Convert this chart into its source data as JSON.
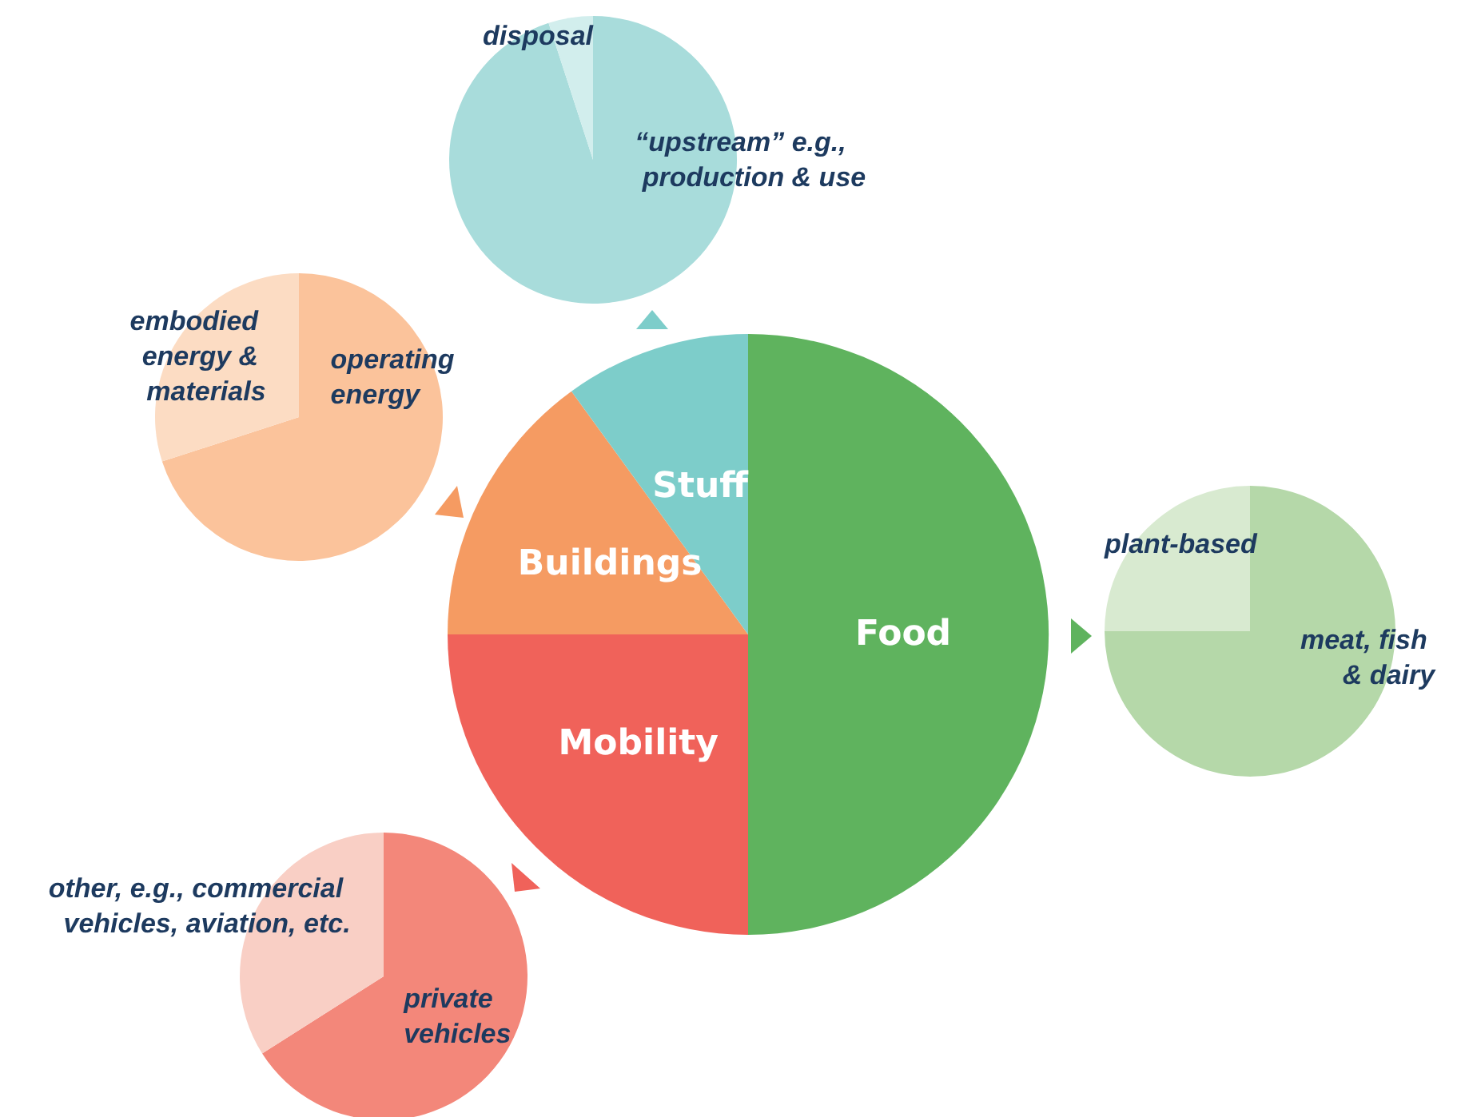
{
  "chart_data": [
    {
      "type": "pie",
      "categories": [
        "Food",
        "Mobility",
        "Buildings",
        "Stuff"
      ],
      "values": [
        50,
        25,
        15,
        10
      ],
      "colors": [
        "#5fb35e",
        "#f0625a",
        "#f59b62",
        "#7dcdca"
      ],
      "legend": false
    },
    {
      "type": "pie",
      "categories": [
        "“upstream” e.g., production & use",
        "disposal"
      ],
      "values": [
        95,
        5
      ],
      "colors": [
        "#a8dcdb",
        "#d2eeed"
      ],
      "legend": false
    },
    {
      "type": "pie",
      "categories": [
        "operating energy",
        "embodied energy & materials"
      ],
      "values": [
        70,
        30
      ],
      "colors": [
        "#fbc39b",
        "#fcdcc3"
      ],
      "legend": false
    },
    {
      "type": "pie",
      "categories": [
        "meat, fish & dairy",
        "plant-based"
      ],
      "values": [
        75,
        25
      ],
      "colors": [
        "#b5d8a9",
        "#d8ead0"
      ],
      "legend": false
    },
    {
      "type": "pie",
      "categories": [
        "private vehicles",
        "other, e.g., commercial vehicles, aviation, etc."
      ],
      "values": [
        66,
        34
      ],
      "colors": [
        "#f3877a",
        "#f9cfc5"
      ],
      "legend": false
    }
  ]
}
